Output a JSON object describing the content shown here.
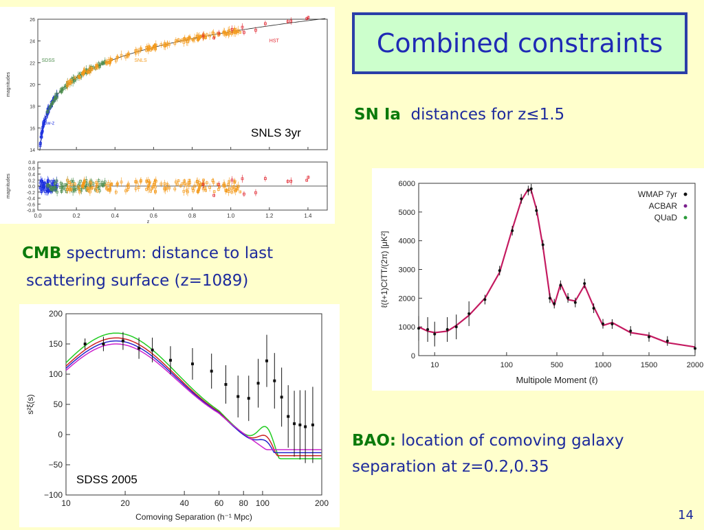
{
  "title": "Combined constraints",
  "slide_number": "14",
  "sn": {
    "key": "SN Ia",
    "text": "distances for z",
    "leq": "≤",
    "value": "1.5"
  },
  "cmb": {
    "key": "CMB",
    "line1": "spectrum: distance to last",
    "line2": "scattering surface  (z=1089)"
  },
  "bao": {
    "key": "BAO:",
    "line1": "location of comoving galaxy",
    "line2": "separation at z=0.2,0.35"
  },
  "colors": {
    "title_text": "#1f2ab5",
    "title_border": "#2a3ea8",
    "title_bg": "#ccffcc",
    "body_text": "#1d2a9c",
    "key_text": "#0b7a0b",
    "background": "#ffffcc"
  },
  "chart_data": [
    {
      "type": "scatter",
      "label": "SNLS 3yr",
      "top_ylabel": "magnitudes",
      "bottom_ylabel": "magnitudes",
      "xlabel": "z",
      "xlim": [
        0,
        1.5
      ],
      "top_ylim": [
        14,
        26
      ],
      "bottom_ylim": [
        -0.8,
        0.8
      ],
      "xticks": [
        "0.0",
        "0.2",
        "0.4",
        "0.6",
        "0.8",
        "1.0",
        "1.2",
        "1.4"
      ],
      "top_yticks": [
        "14",
        "16",
        "18",
        "20",
        "22",
        "24",
        "26"
      ],
      "bottom_yticks": [
        "-0.8",
        "-0.6",
        "-0.4",
        "-0.2",
        "0.0",
        "0.2",
        "0.4",
        "0.6",
        "0.8"
      ],
      "series": [
        {
          "name": "Low-z",
          "color": "#1a2ee0"
        },
        {
          "name": "SDSS",
          "color": "#4c8c4c"
        },
        {
          "name": "SNLS",
          "color": "#f39a1c"
        },
        {
          "name": "HST",
          "color": "#e0202a"
        }
      ]
    },
    {
      "type": "line",
      "legend": [
        "WMAP 7yr",
        "ACBAR",
        "QUaD"
      ],
      "legend_colors": [
        "#111111",
        "#7a1f8c",
        "#2a9a3a"
      ],
      "xlabel": "Multipole Moment (ℓ)",
      "ylabel": "ℓ(ℓ+1)CℓTT/(2π) [μK²]",
      "xticks": [
        "10",
        "100",
        "500",
        "1000",
        "1500",
        "2000"
      ],
      "yticks": [
        "0",
        "1000",
        "2000",
        "3000",
        "4000",
        "5000",
        "6000"
      ],
      "ylim": [
        0,
        6000
      ],
      "x": [
        6,
        8,
        10,
        15,
        20,
        30,
        50,
        80,
        120,
        160,
        200,
        220,
        260,
        320,
        400,
        460,
        540,
        620,
        700,
        800,
        900,
        1000,
        1100,
        1300,
        1500,
        1700,
        2000
      ],
      "y": [
        1000,
        850,
        800,
        850,
        1050,
        1400,
        2000,
        2900,
        4400,
        5400,
        5800,
        5750,
        5100,
        3800,
        2050,
        1750,
        2500,
        1950,
        1900,
        2450,
        1700,
        1050,
        1150,
        800,
        700,
        450,
        300
      ]
    },
    {
      "type": "line",
      "label": "SDSS 2005",
      "ylabel": "s²ξ(s)",
      "xlabel": "Comoving Separation (h⁻¹ Mpc)",
      "xticks": [
        "10",
        "20",
        "40",
        "60",
        "80",
        "100",
        "200"
      ],
      "yticks": [
        "−100",
        "−50",
        "0",
        "50",
        "100",
        "150",
        "200"
      ],
      "ylim": [
        -100,
        200
      ],
      "points": {
        "x": [
          12.5,
          15.5,
          19.5,
          23.5,
          27.5,
          34,
          44,
          55,
          65,
          75,
          85,
          95,
          105,
          115,
          125,
          135,
          145,
          155,
          165,
          180
        ],
        "y": [
          150,
          150,
          155,
          143,
          140,
          123,
          117,
          105,
          83,
          63,
          60,
          85,
          122,
          89,
          62,
          30,
          18,
          16,
          13,
          16
        ]
      },
      "curves": [
        {
          "color": "#22cc22"
        },
        {
          "color": "#cc2222"
        },
        {
          "color": "#2222cc"
        },
        {
          "color": "#cc22cc"
        }
      ]
    }
  ]
}
